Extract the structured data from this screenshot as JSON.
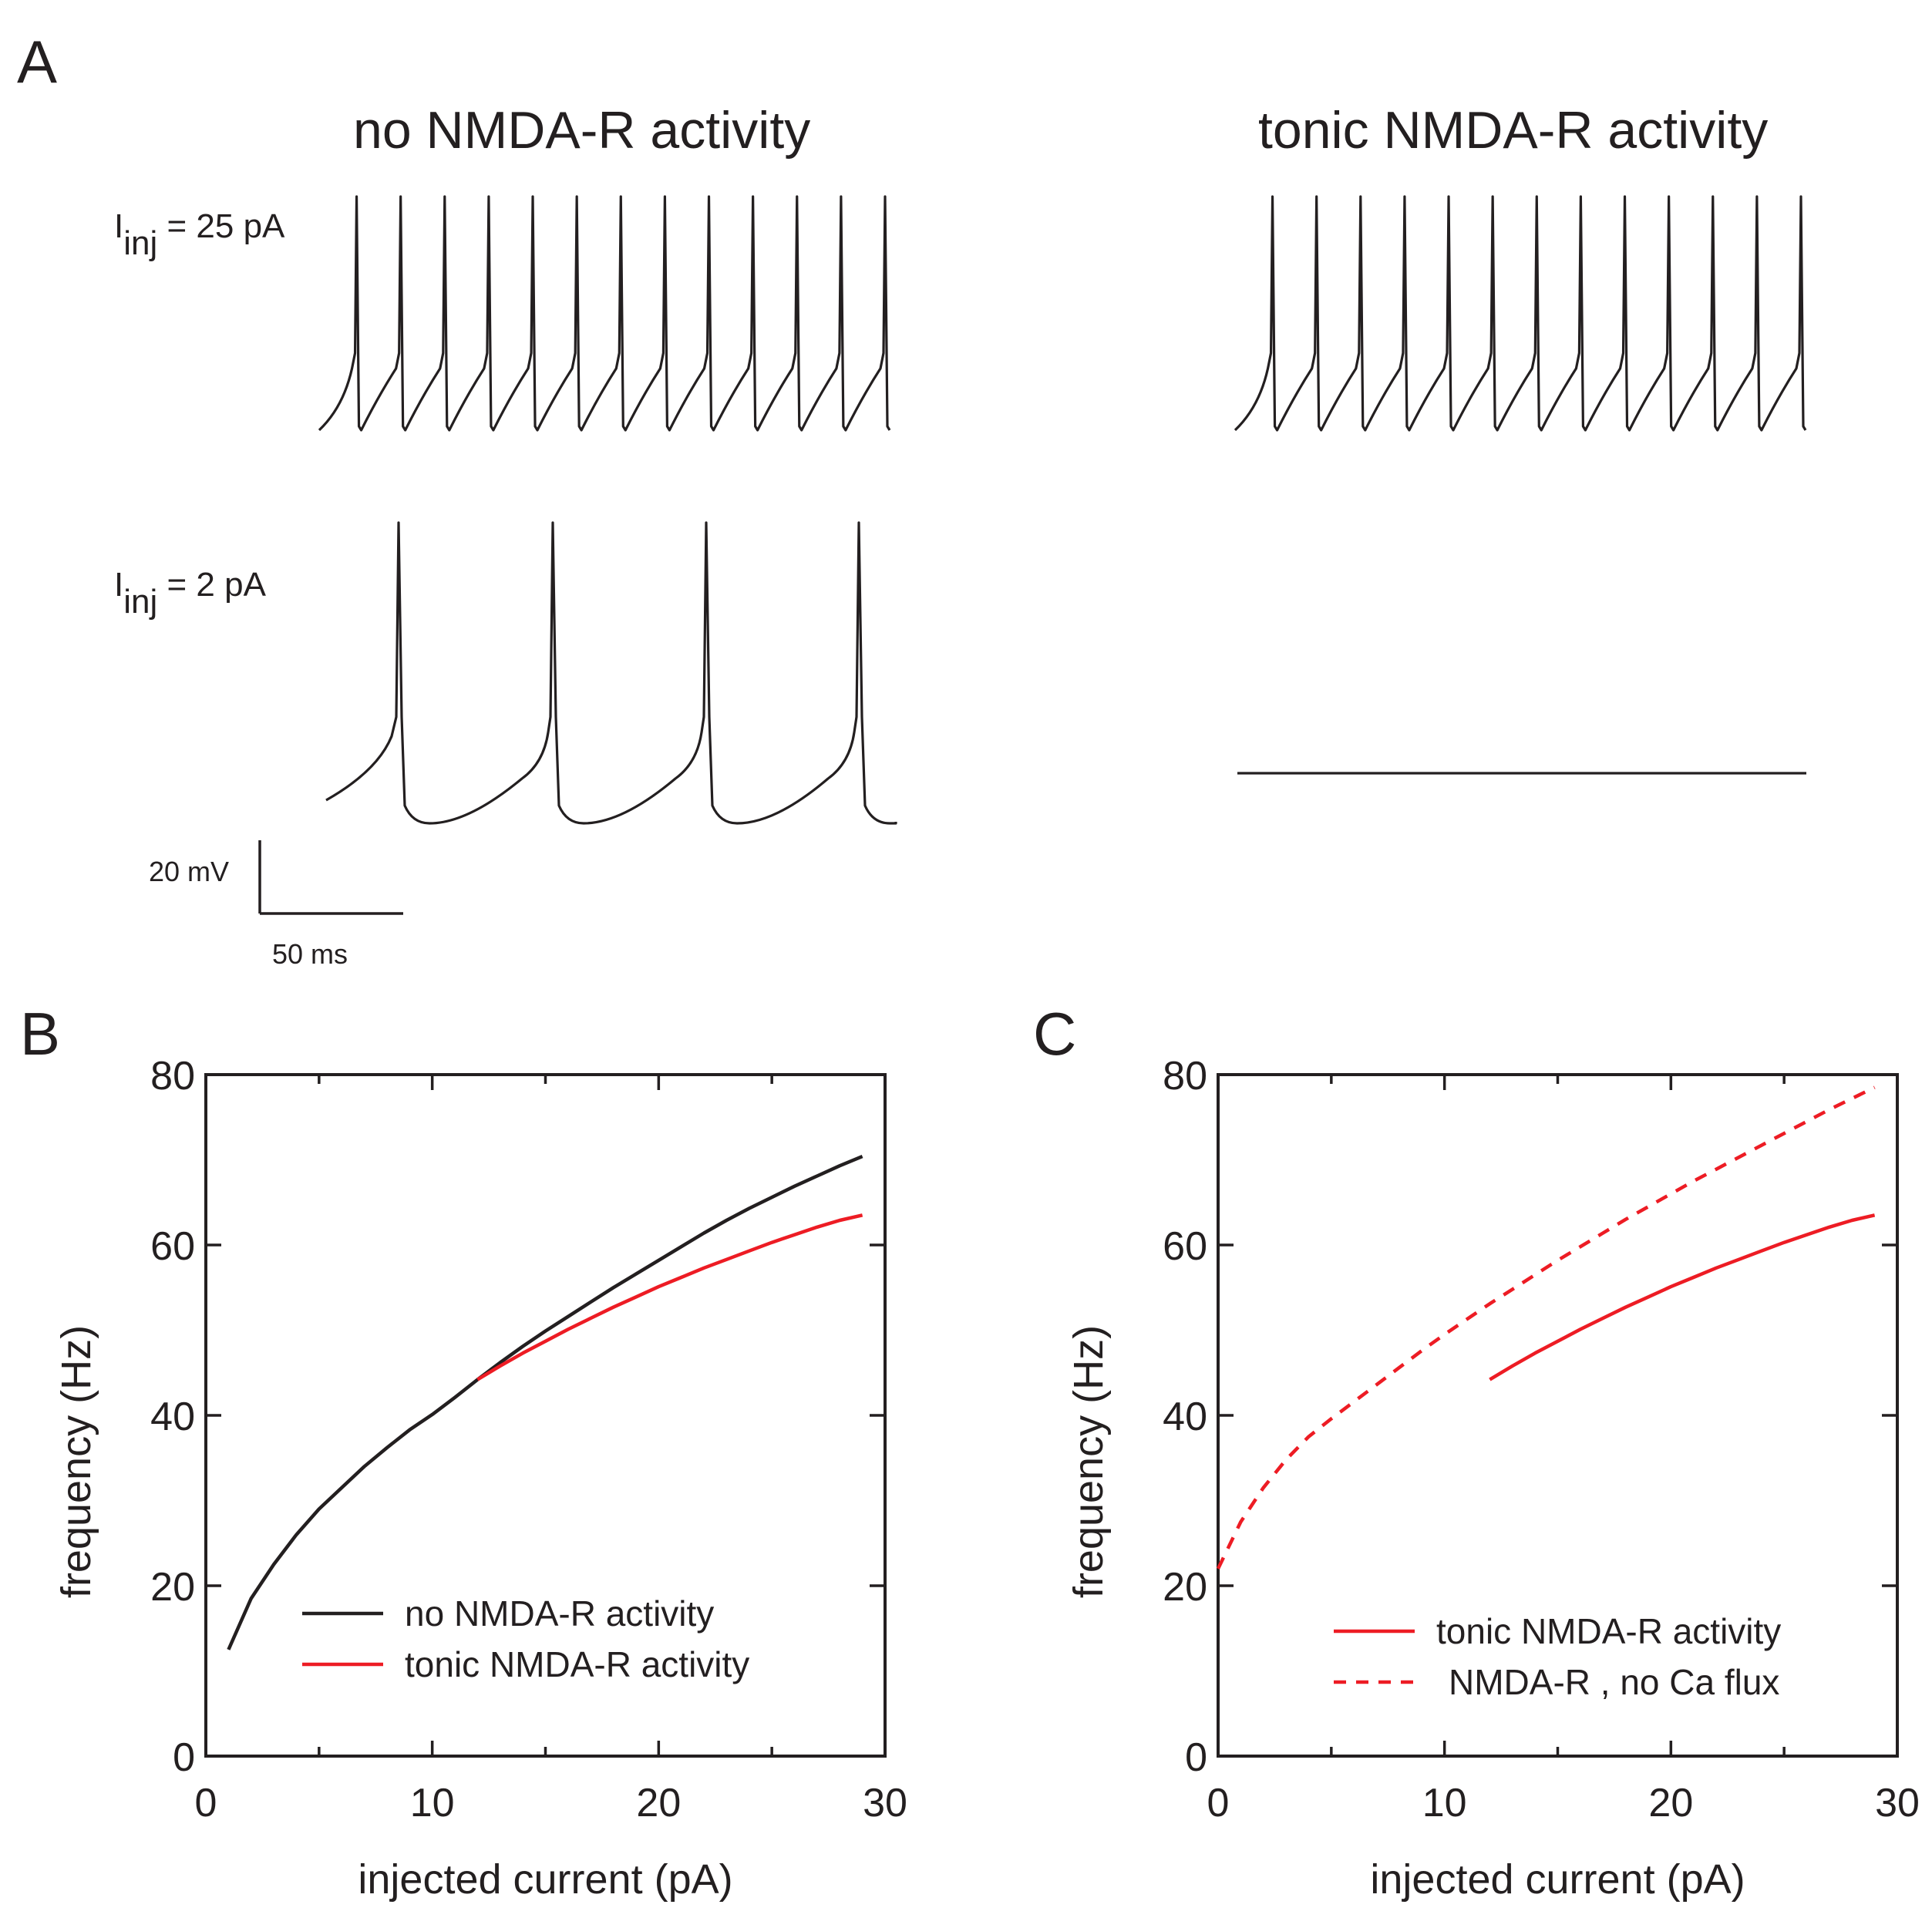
{
  "panels": {
    "A": {
      "letter": "A",
      "left_title": "no NMDA-R activity",
      "right_title": "tonic NMDA-R activity",
      "row1_label": {
        "main": "I",
        "sub": "inj",
        "rest": " = 25 pA"
      },
      "row2_label": {
        "main": "I",
        "sub": "inj",
        "rest": " = 2 pA"
      },
      "scale_voltage": "20 mV",
      "scale_time": "50 ms",
      "traces": {
        "row1_left_spikes": 13,
        "row1_right_spikes": 13,
        "row2_left_spikes": 4,
        "row2_right_spikes": 0
      }
    },
    "B": {
      "letter": "B"
    },
    "C": {
      "letter": "C"
    }
  },
  "chart_data": [
    {
      "id": "B",
      "type": "line",
      "title": "",
      "xlabel": "injected current (pA)",
      "ylabel": "frequency (Hz)",
      "xlim": [
        0,
        30
      ],
      "ylim": [
        0,
        80
      ],
      "xticks": [
        0,
        10,
        20,
        30
      ],
      "yticks": [
        0,
        20,
        40,
        60,
        80
      ],
      "legend_position": "bottom-right",
      "series": [
        {
          "name": "no NMDA-R activity",
          "color": "#231f20",
          "dash": "solid",
          "x": [
            1,
            2,
            3,
            4,
            5,
            6,
            7,
            8,
            9,
            10,
            11,
            12,
            13,
            14,
            15,
            16,
            17,
            18,
            19,
            20,
            21,
            22,
            23,
            24,
            25,
            26,
            27,
            28,
            29
          ],
          "y": [
            12.5,
            18.5,
            22.5,
            26,
            29,
            31.5,
            34,
            36.2,
            38.3,
            40.1,
            42.1,
            44.2,
            46.2,
            48.1,
            49.9,
            51.6,
            53.3,
            55,
            56.6,
            58.2,
            59.8,
            61.4,
            62.9,
            64.3,
            65.6,
            66.9,
            68.1,
            69.3,
            70.4
          ]
        },
        {
          "name": "tonic NMDA-R activity",
          "color": "#ed1c24",
          "dash": "solid",
          "x": [
            12,
            13,
            14,
            15,
            16,
            17,
            18,
            19,
            20,
            21,
            22,
            23,
            24,
            25,
            26,
            27,
            28,
            29
          ],
          "y": [
            44.2,
            45.8,
            47.3,
            48.7,
            50.1,
            51.4,
            52.7,
            53.9,
            55.1,
            56.2,
            57.3,
            58.3,
            59.3,
            60.3,
            61.2,
            62.1,
            62.9,
            63.5
          ]
        }
      ]
    },
    {
      "id": "C",
      "type": "line",
      "title": "",
      "xlabel": "injected current (pA)",
      "ylabel": "frequency (Hz)",
      "xlim": [
        0,
        30
      ],
      "ylim": [
        0,
        80
      ],
      "xticks": [
        0,
        10,
        20,
        30
      ],
      "yticks": [
        0,
        20,
        40,
        60,
        80
      ],
      "legend_position": "bottom-right",
      "series": [
        {
          "name": "tonic NMDA-R activity",
          "color": "#ed1c24",
          "dash": "solid",
          "x": [
            12,
            13,
            14,
            15,
            16,
            17,
            18,
            19,
            20,
            21,
            22,
            23,
            24,
            25,
            26,
            27,
            28,
            29
          ],
          "y": [
            44.2,
            45.8,
            47.3,
            48.7,
            50.1,
            51.4,
            52.7,
            53.9,
            55.1,
            56.2,
            57.3,
            58.3,
            59.3,
            60.3,
            61.2,
            62.1,
            62.9,
            63.5
          ]
        },
        {
          "name": "NMDA-R , no Ca flux",
          "color": "#ed1c24",
          "dash": "dashed",
          "x": [
            0,
            1,
            2,
            3,
            4,
            5,
            6,
            7,
            8,
            9,
            10,
            11,
            12,
            13,
            14,
            15,
            16,
            17,
            18,
            19,
            20,
            21,
            22,
            23,
            24,
            25,
            26,
            27,
            28,
            29
          ],
          "y": [
            22,
            27.5,
            31.5,
            34.8,
            37.5,
            39.6,
            41.6,
            43.6,
            45.6,
            47.6,
            49.5,
            51.3,
            53.1,
            54.8,
            56.5,
            58.2,
            59.8,
            61.4,
            63,
            64.5,
            66,
            67.5,
            68.9,
            70.3,
            71.7,
            73.1,
            74.5,
            75.9,
            77.2,
            78.5
          ]
        }
      ]
    }
  ]
}
